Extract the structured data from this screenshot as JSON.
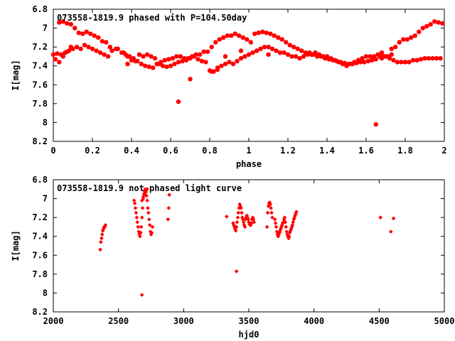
{
  "chart_data": [
    {
      "type": "scatter",
      "title": "073558-1819.9 phased with P=104.50day",
      "xlabel": "phase",
      "ylabel": "I[mag]",
      "xlim": [
        0,
        2
      ],
      "ylim": [
        8.2,
        6.8
      ],
      "y_inverted": true,
      "x_ticks": [
        0,
        0.2,
        0.4,
        0.6,
        0.8,
        1,
        1.2,
        1.4,
        1.6,
        1.8,
        2
      ],
      "x_tick_labels": [
        "0",
        "0.2",
        "0.4",
        "0.6",
        "0.8",
        "1",
        "1.2",
        "1.4",
        "1.6",
        "1.8",
        "2"
      ],
      "y_ticks": [
        6.8,
        7,
        7.2,
        7.4,
        7.6,
        7.8,
        8,
        8.2
      ],
      "y_tick_labels": [
        "6.8",
        "7",
        "7.2",
        "7.4",
        "7.6",
        "7.8",
        "8",
        "8.2"
      ],
      "grid": false,
      "legend": "none",
      "marker": "star",
      "color": "#ff0000",
      "series": [
        {
          "x": [
            0.01,
            0.03,
            0.05,
            0.07,
            0.09,
            0.03,
            0.05,
            0.07,
            0.09,
            0.11,
            0.13,
            0.15,
            0.17,
            0.19,
            0.21,
            0.23,
            0.25,
            0.27,
            0.29,
            0.32,
            0.35,
            0.37,
            0.39,
            0.41,
            0.43,
            0.45,
            0.47,
            0.49,
            0.51,
            0.53,
            0.55,
            0.57,
            0.59,
            0.61,
            0.63,
            0.65,
            0.67,
            0.69,
            0.71,
            0.73,
            0.75,
            0.77,
            0.79,
            0.81,
            0.83,
            0.85,
            0.87,
            0.89,
            0.91,
            0.93,
            0.95,
            0.97,
            0.99,
            1.01,
            1.03,
            1.05,
            1.07,
            1.09,
            1.11,
            1.13,
            1.15,
            1.17,
            1.19,
            1.21,
            1.23,
            1.25,
            1.27,
            1.29,
            1.31,
            1.33,
            1.35,
            1.37,
            1.39,
            1.41,
            1.43,
            1.45,
            1.47,
            1.49,
            1.51,
            1.53,
            1.55,
            1.57,
            1.59,
            1.61,
            1.63,
            1.65,
            1.67,
            1.69,
            1.71,
            1.73,
            1.75,
            1.77,
            1.79,
            1.81,
            1.83,
            1.85,
            1.87,
            1.89,
            1.91,
            1.93,
            1.95,
            1.97,
            1.99,
            0.0,
            0.02,
            0.04,
            0.06,
            0.08,
            0.1,
            0.12,
            0.14,
            0.16,
            0.18,
            0.2,
            0.22,
            0.24,
            0.26,
            0.28,
            0.3,
            0.33,
            0.36,
            0.38,
            0.4,
            0.42,
            0.44,
            0.46,
            0.48,
            0.5,
            0.52,
            0.54,
            0.56,
            0.58,
            0.6,
            0.62,
            0.64,
            0.66,
            0.68,
            0.7,
            0.72,
            0.74,
            0.76,
            0.78,
            0.8,
            0.82,
            0.84,
            0.86,
            0.88,
            0.9,
            0.92,
            0.94,
            0.96,
            0.98,
            1.0,
            1.02,
            1.04,
            1.06,
            1.08,
            1.1,
            1.12,
            1.14,
            1.16,
            1.18,
            1.2,
            1.22,
            1.24,
            1.26,
            1.28,
            1.3,
            1.32,
            1.34,
            1.36,
            1.38,
            1.4,
            1.42,
            1.44,
            1.46,
            1.48,
            1.5,
            1.52,
            1.54,
            1.56,
            1.58,
            1.6,
            1.62,
            1.64,
            1.66,
            1.68,
            1.7,
            1.72,
            1.74,
            1.76,
            1.78,
            1.8,
            1.82,
            1.84,
            1.86,
            1.88,
            1.9,
            1.92,
            1.94,
            1.96,
            1.98,
            0.38,
            0.64,
            0.7,
            1.65,
            1.68,
            1.73,
            1.1,
            0.96,
            0.81,
            0.84,
            0.88
          ],
          "y": [
            7.33,
            7.36,
            7.3,
            7.25,
            7.2,
            6.94,
            6.93,
            6.95,
            6.96,
            7.0,
            7.05,
            7.06,
            7.04,
            7.06,
            7.08,
            7.1,
            7.14,
            7.15,
            7.2,
            7.22,
            7.26,
            7.28,
            7.3,
            7.32,
            7.35,
            7.38,
            7.4,
            7.41,
            7.42,
            7.38,
            7.36,
            7.34,
            7.33,
            7.32,
            7.3,
            7.3,
            7.32,
            7.32,
            7.3,
            7.28,
            7.28,
            7.25,
            7.25,
            7.2,
            7.15,
            7.12,
            7.1,
            7.08,
            7.08,
            7.06,
            7.08,
            7.1,
            7.12,
            7.15,
            7.06,
            7.05,
            7.04,
            7.05,
            7.06,
            7.08,
            7.1,
            7.12,
            7.15,
            7.18,
            7.2,
            7.22,
            7.24,
            7.26,
            7.26,
            7.28,
            7.3,
            7.3,
            7.32,
            7.33,
            7.34,
            7.35,
            7.36,
            7.37,
            7.38,
            7.38,
            7.37,
            7.36,
            7.36,
            7.35,
            7.34,
            7.33,
            7.3,
            7.3,
            7.3,
            7.28,
            7.2,
            7.15,
            7.12,
            7.12,
            7.1,
            7.08,
            7.04,
            7.0,
            6.98,
            6.96,
            6.93,
            6.94,
            6.95,
            7.28,
            7.27,
            7.28,
            7.26,
            7.24,
            7.22,
            7.2,
            7.22,
            7.18,
            7.2,
            7.22,
            7.24,
            7.26,
            7.28,
            7.3,
            7.24,
            7.22,
            7.26,
            7.3,
            7.34,
            7.35,
            7.28,
            7.3,
            7.28,
            7.3,
            7.32,
            7.38,
            7.4,
            7.41,
            7.4,
            7.38,
            7.36,
            7.35,
            7.34,
            7.32,
            7.3,
            7.33,
            7.35,
            7.36,
            7.45,
            7.46,
            7.44,
            7.4,
            7.38,
            7.36,
            7.38,
            7.35,
            7.32,
            7.3,
            7.28,
            7.26,
            7.24,
            7.22,
            7.2,
            7.2,
            7.22,
            7.24,
            7.26,
            7.26,
            7.28,
            7.3,
            7.3,
            7.32,
            7.3,
            7.28,
            7.28,
            7.26,
            7.28,
            7.3,
            7.3,
            7.32,
            7.34,
            7.36,
            7.38,
            7.4,
            7.38,
            7.36,
            7.34,
            7.32,
            7.3,
            7.3,
            7.3,
            7.28,
            7.26,
            7.3,
            7.32,
            7.34,
            7.36,
            7.36,
            7.36,
            7.36,
            7.34,
            7.34,
            7.33,
            7.32,
            7.32,
            7.32,
            7.32,
            7.32,
            7.38,
            7.78,
            7.54,
            8.02,
            7.32,
            7.22,
            7.28,
            7.24,
            7.46,
            7.42,
            7.3
          ]
        }
      ]
    },
    {
      "type": "scatter",
      "title": "073558-1819.9 not phased light curve",
      "xlabel": "hjd0",
      "ylabel": "I[mag]",
      "xlim": [
        2000,
        5000
      ],
      "ylim": [
        8.2,
        6.8
      ],
      "y_inverted": true,
      "x_ticks": [
        2000,
        2500,
        3000,
        3500,
        4000,
        4500,
        5000
      ],
      "x_tick_labels": [
        "2000",
        "2500",
        "3000",
        "3500",
        "4000",
        "4500",
        "5000"
      ],
      "y_ticks": [
        6.8,
        7,
        7.2,
        7.4,
        7.6,
        7.8,
        8,
        8.2
      ],
      "y_tick_labels": [
        "6.8",
        "7",
        "7.2",
        "7.4",
        "7.6",
        "7.8",
        "8",
        "8.2"
      ],
      "grid": false,
      "legend": "none",
      "marker": "diamond",
      "color": "#ff0000",
      "series": [
        {
          "x": [
            2360,
            2365,
            2370,
            2375,
            2380,
            2385,
            2390,
            2395,
            2400,
            2620,
            2625,
            2630,
            2635,
            2640,
            2645,
            2650,
            2655,
            2660,
            2665,
            2670,
            2675,
            2680,
            2685,
            2690,
            2695,
            2700,
            2705,
            2710,
            2715,
            2720,
            2725,
            2730,
            2735,
            2740,
            2745,
            2750,
            2755,
            2760,
            2680,
            2690,
            2700,
            2710,
            2720,
            2880,
            2885,
            2890,
            3330,
            3380,
            3385,
            3390,
            3395,
            3400,
            3405,
            3410,
            3415,
            3420,
            3425,
            3430,
            3435,
            3440,
            3445,
            3450,
            3455,
            3460,
            3465,
            3470,
            3475,
            3480,
            3485,
            3490,
            3495,
            3500,
            3505,
            3510,
            3515,
            3520,
            3525,
            3530,
            3535,
            3540,
            3640,
            3645,
            3650,
            3655,
            3660,
            3665,
            3670,
            3675,
            3680,
            3700,
            3705,
            3710,
            3715,
            3720,
            3725,
            3730,
            3735,
            3740,
            3745,
            3750,
            3755,
            3760,
            3765,
            3770,
            3775,
            3780,
            3785,
            3790,
            3795,
            3800,
            3805,
            3810,
            3815,
            3820,
            3825,
            3830,
            3835,
            3840,
            3845,
            3850,
            3855,
            3860,
            3865,
            4510,
            4590,
            4610,
            3405,
            2680
          ],
          "y": [
            7.54,
            7.46,
            7.42,
            7.38,
            7.34,
            7.32,
            7.3,
            7.3,
            7.28,
            7.02,
            7.05,
            7.1,
            7.15,
            7.2,
            7.25,
            7.3,
            7.35,
            7.38,
            7.4,
            7.36,
            7.3,
            7.2,
            7.1,
            7.0,
            6.95,
            6.92,
            6.9,
            6.93,
            6.97,
            7.02,
            7.1,
            7.15,
            7.22,
            7.28,
            7.35,
            7.38,
            7.36,
            7.3,
            7.02,
            6.98,
            6.95,
            6.92,
            6.9,
            7.22,
            7.1,
            6.96,
            7.19,
            7.26,
            7.28,
            7.3,
            7.32,
            7.34,
            7.3,
            7.25,
            7.2,
            7.15,
            7.1,
            7.06,
            7.08,
            7.1,
            7.15,
            7.2,
            7.22,
            7.25,
            7.28,
            7.3,
            7.22,
            7.2,
            7.18,
            7.2,
            7.22,
            7.25,
            7.27,
            7.28,
            7.28,
            7.26,
            7.22,
            7.2,
            7.22,
            7.25,
            7.3,
            7.15,
            7.08,
            7.05,
            7.04,
            7.06,
            7.1,
            7.15,
            7.2,
            7.22,
            7.26,
            7.3,
            7.35,
            7.38,
            7.4,
            7.38,
            7.36,
            7.34,
            7.32,
            7.3,
            7.28,
            7.26,
            7.25,
            7.22,
            7.2,
            7.25,
            7.3,
            7.35,
            7.38,
            7.4,
            7.42,
            7.4,
            7.36,
            7.34,
            7.32,
            7.3,
            7.28,
            7.25,
            7.22,
            7.2,
            7.18,
            7.16,
            7.14,
            7.2,
            7.35,
            7.21,
            7.77,
            8.02
          ]
        }
      ]
    }
  ]
}
